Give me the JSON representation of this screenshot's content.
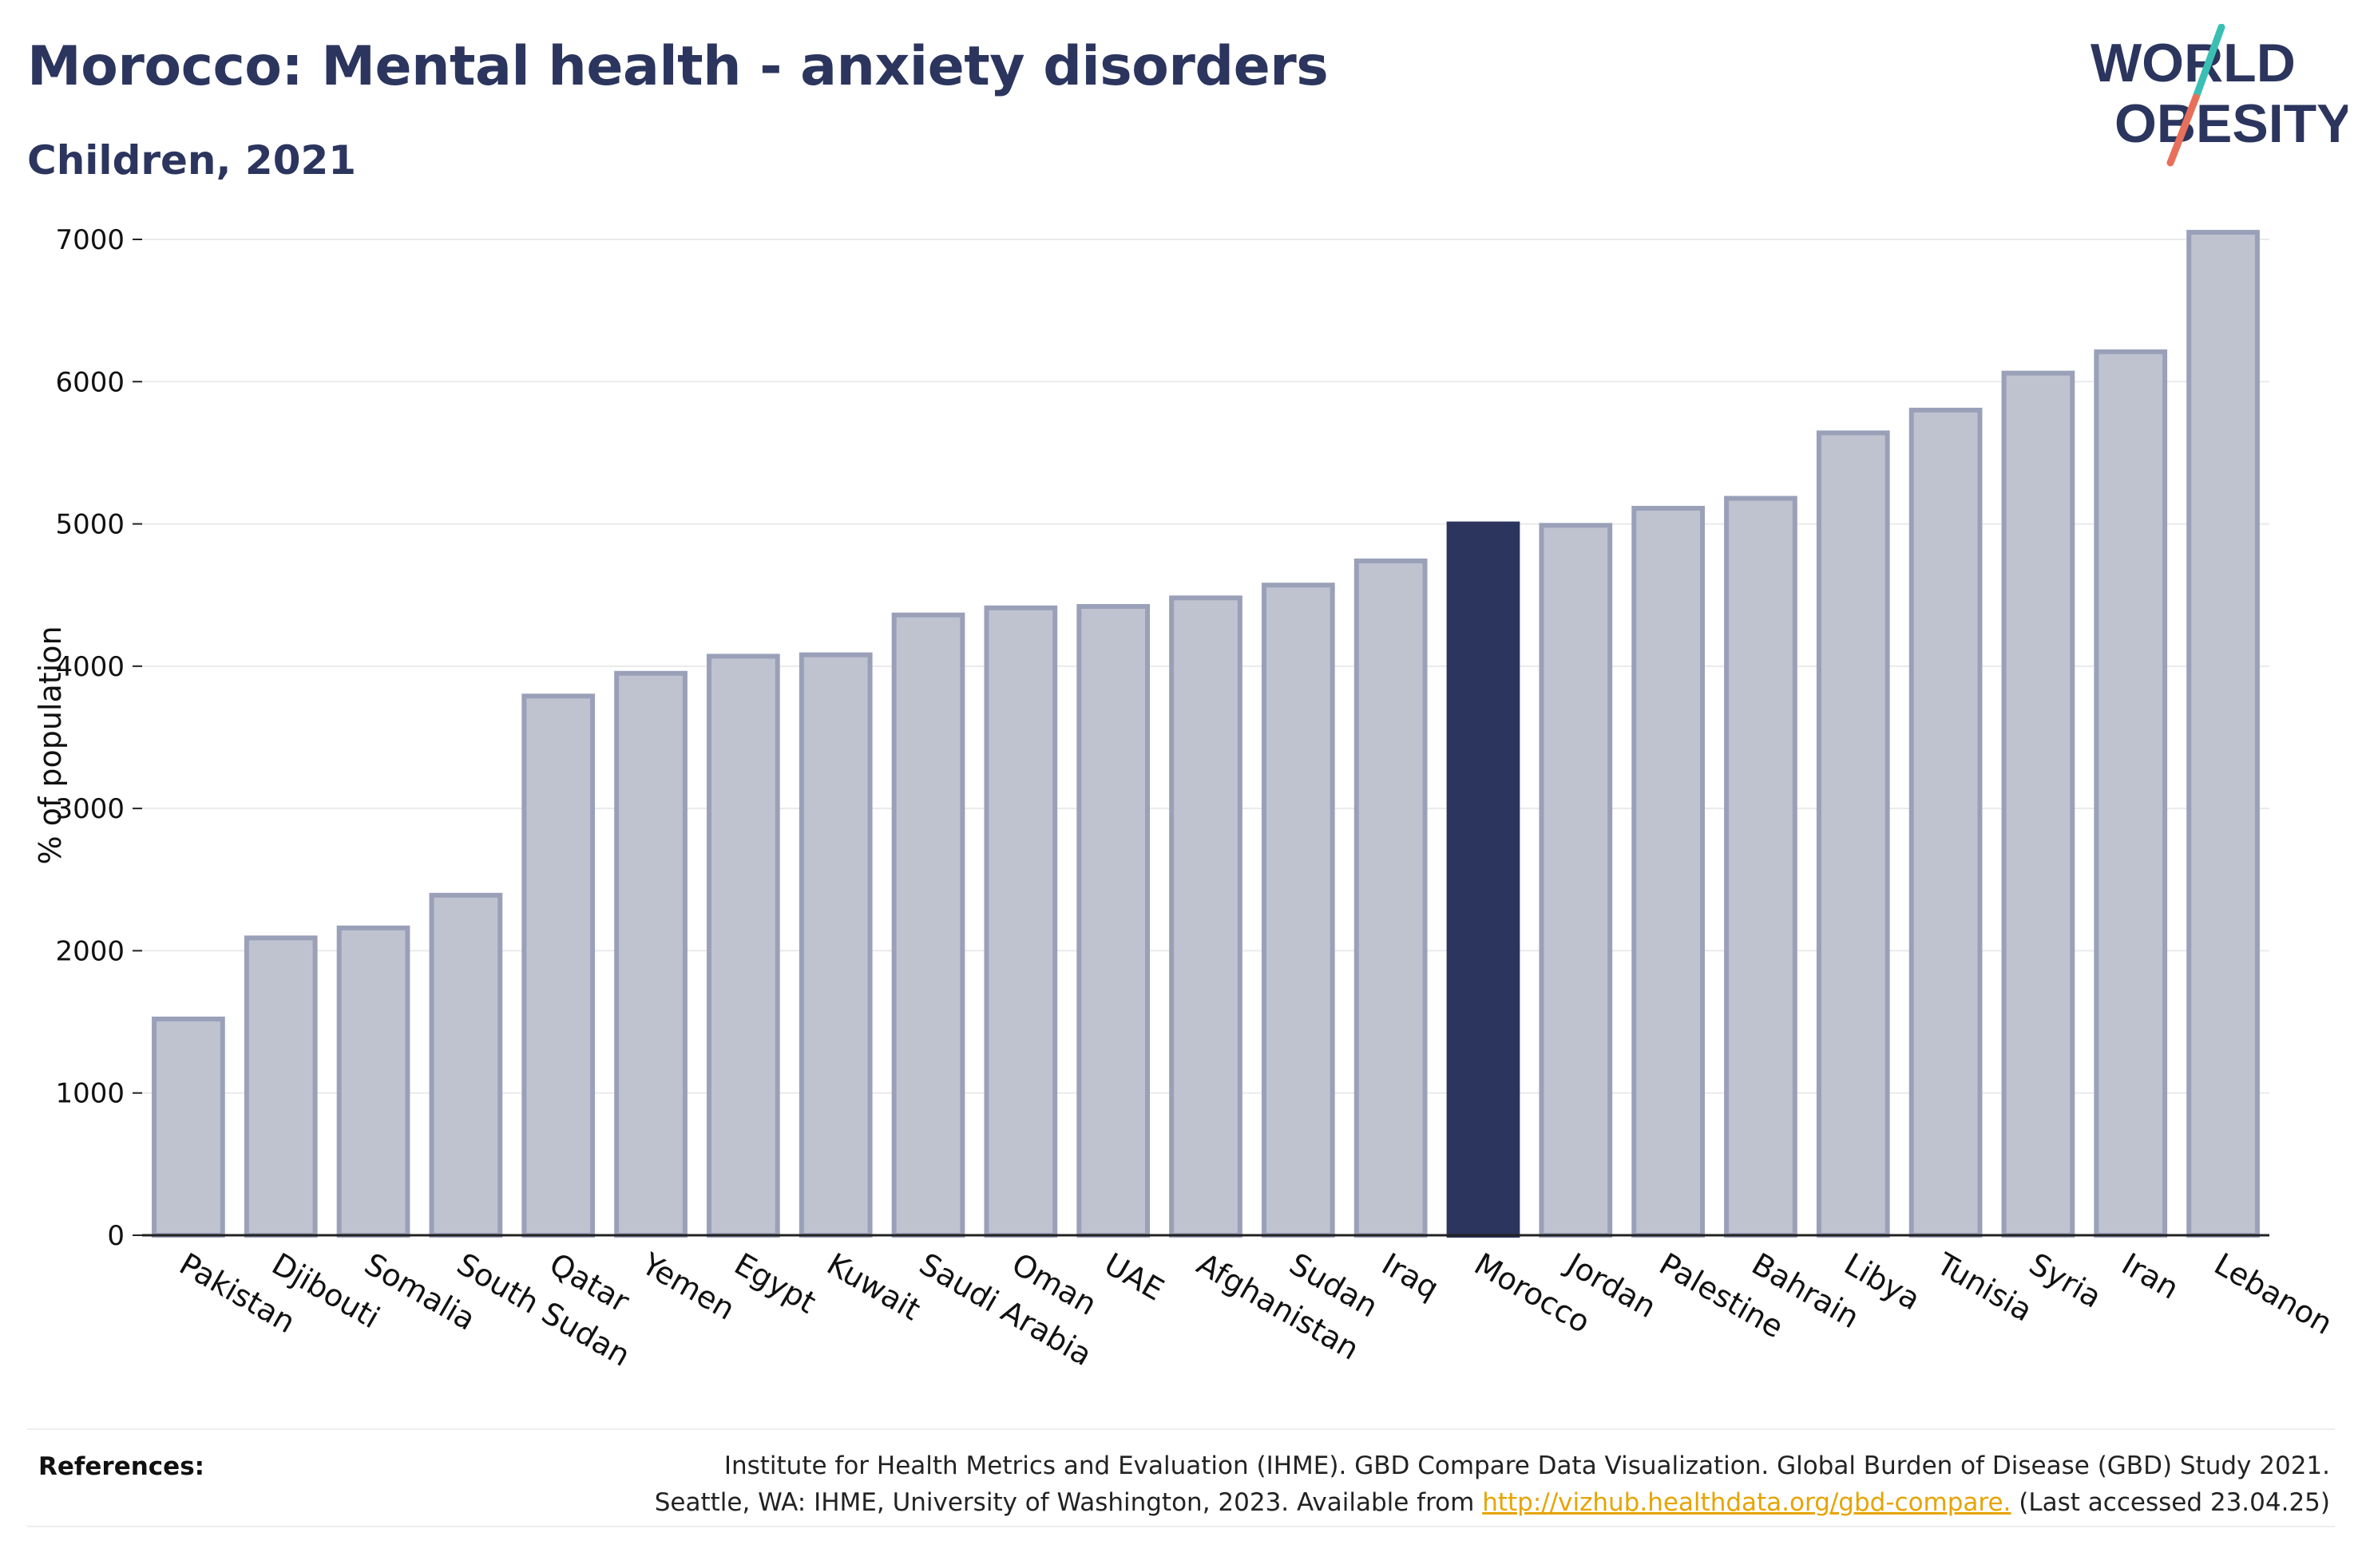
{
  "header": {
    "title": "Morocco: Mental health - anxiety disorders",
    "subtitle": "Children, 2021"
  },
  "logo": {
    "line1": "WORLD",
    "line2": "OBESITY",
    "colors": {
      "text": "#2b355e",
      "slash_top": "#3bbfb4",
      "slash_bottom": "#e8705a"
    }
  },
  "chart_data": {
    "type": "bar",
    "title": "Morocco: Mental health - anxiety disorders",
    "subtitle": "Children, 2021",
    "xlabel": "",
    "ylabel": "% of population",
    "ylim": [
      0,
      7000
    ],
    "yticks": [
      0,
      1000,
      2000,
      3000,
      4000,
      5000,
      6000,
      7000
    ],
    "grid": true,
    "highlight": "Morocco",
    "colors": {
      "bar": "#bfc3d0",
      "bar_border": "#9aa0b8",
      "highlight": "#2b355e",
      "grid": "#eaeaea",
      "axis": "#222222"
    },
    "categories": [
      "Pakistan",
      "Djibouti",
      "Somalia",
      "South Sudan",
      "Qatar",
      "Yemen",
      "Egypt",
      "Kuwait",
      "Saudi Arabia",
      "Oman",
      "UAE",
      "Afghanistan",
      "Sudan",
      "Iraq",
      "Morocco",
      "Jordan",
      "Palestine",
      "Bahrain",
      "Libya",
      "Tunisia",
      "Syria",
      "Iran",
      "Lebanon"
    ],
    "values": [
      1520,
      2090,
      2160,
      2390,
      3790,
      3950,
      4070,
      4080,
      4360,
      4410,
      4420,
      4480,
      4570,
      4740,
      5000,
      4990,
      5110,
      5180,
      5640,
      5800,
      6060,
      6210,
      7050
    ]
  },
  "references": {
    "label": "References:",
    "line1": "Institute for Health Metrics and Evaluation (IHME). GBD Compare Data Visualization. Global Burden of Disease (GBD) Study 2021.",
    "line2_prefix": "Seattle, WA: IHME, University of Washington, 2023. Available from ",
    "link": "http://vizhub.healthdata.org/gbd-compare.",
    "line2_suffix": " (Last accessed 23.04.25)"
  }
}
